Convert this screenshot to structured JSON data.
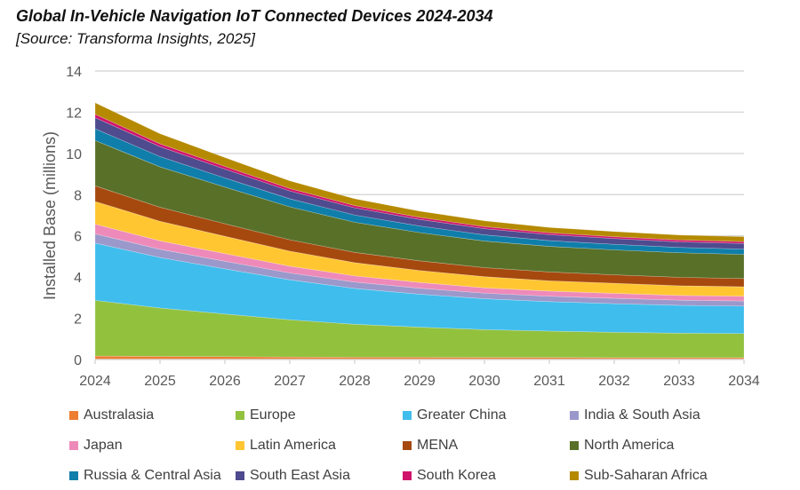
{
  "chart_data": {
    "type": "area",
    "stacked": true,
    "title": "Global In-Vehicle Navigation IoT Connected Devices 2024-2034",
    "subtitle": "[Source: Transforma Insights, 2025]",
    "xlabel": "",
    "ylabel": "Installed Base (millions)",
    "ylim": [
      0,
      14
    ],
    "yticks": [
      0,
      2,
      4,
      6,
      8,
      10,
      12,
      14
    ],
    "grid": true,
    "legend_position": "bottom",
    "x": [
      "2024",
      "2025",
      "2026",
      "2027",
      "2028",
      "2029",
      "2030",
      "2031",
      "2032",
      "2033",
      "2034"
    ],
    "series": [
      {
        "name": "Australasia",
        "color": "#ED7D31",
        "values": [
          0.17,
          0.15,
          0.14,
          0.12,
          0.11,
          0.11,
          0.1,
          0.1,
          0.09,
          0.09,
          0.09
        ]
      },
      {
        "name": "Europe",
        "color": "#92C13E",
        "values": [
          2.7,
          2.35,
          2.07,
          1.81,
          1.6,
          1.46,
          1.35,
          1.28,
          1.23,
          1.19,
          1.17
        ]
      },
      {
        "name": "Greater China",
        "color": "#3FBDED",
        "values": [
          2.78,
          2.45,
          2.19,
          1.94,
          1.74,
          1.6,
          1.5,
          1.43,
          1.39,
          1.35,
          1.33
        ]
      },
      {
        "name": "India & South Asia",
        "color": "#9B98CB",
        "values": [
          0.45,
          0.4,
          0.37,
          0.33,
          0.31,
          0.29,
          0.27,
          0.26,
          0.26,
          0.25,
          0.25
        ]
      },
      {
        "name": "Japan",
        "color": "#EE8AB9",
        "values": [
          0.47,
          0.41,
          0.37,
          0.33,
          0.3,
          0.28,
          0.26,
          0.25,
          0.24,
          0.23,
          0.23
        ]
      },
      {
        "name": "Latin America",
        "color": "#FFC632",
        "values": [
          1.1,
          0.95,
          0.84,
          0.73,
          0.64,
          0.58,
          0.54,
          0.5,
          0.49,
          0.47,
          0.46
        ]
      },
      {
        "name": "MENA",
        "color": "#A6490F",
        "values": [
          0.76,
          0.68,
          0.61,
          0.55,
          0.5,
          0.47,
          0.44,
          0.43,
          0.41,
          0.41,
          0.4
        ]
      },
      {
        "name": "North America",
        "color": "#587028",
        "values": [
          2.2,
          1.96,
          1.78,
          1.6,
          1.46,
          1.37,
          1.29,
          1.24,
          1.21,
          1.19,
          1.17
        ]
      },
      {
        "name": "Russia & Central Asia",
        "color": "#0F7EAA",
        "values": [
          0.57,
          0.5,
          0.44,
          0.39,
          0.35,
          0.32,
          0.3,
          0.28,
          0.27,
          0.26,
          0.26
        ]
      },
      {
        "name": "South East Asia",
        "color": "#4E4B8E",
        "values": [
          0.54,
          0.48,
          0.43,
          0.38,
          0.35,
          0.32,
          0.3,
          0.29,
          0.28,
          0.27,
          0.27
        ]
      },
      {
        "name": "South Korea",
        "color": "#D0136B",
        "values": [
          0.16,
          0.14,
          0.13,
          0.12,
          0.11,
          0.1,
          0.1,
          0.09,
          0.09,
          0.09,
          0.09
        ]
      },
      {
        "name": "Sub-Saharan Africa",
        "color": "#B58A00",
        "values": [
          0.56,
          0.49,
          0.43,
          0.37,
          0.33,
          0.3,
          0.28,
          0.26,
          0.25,
          0.24,
          0.24
        ]
      }
    ]
  }
}
